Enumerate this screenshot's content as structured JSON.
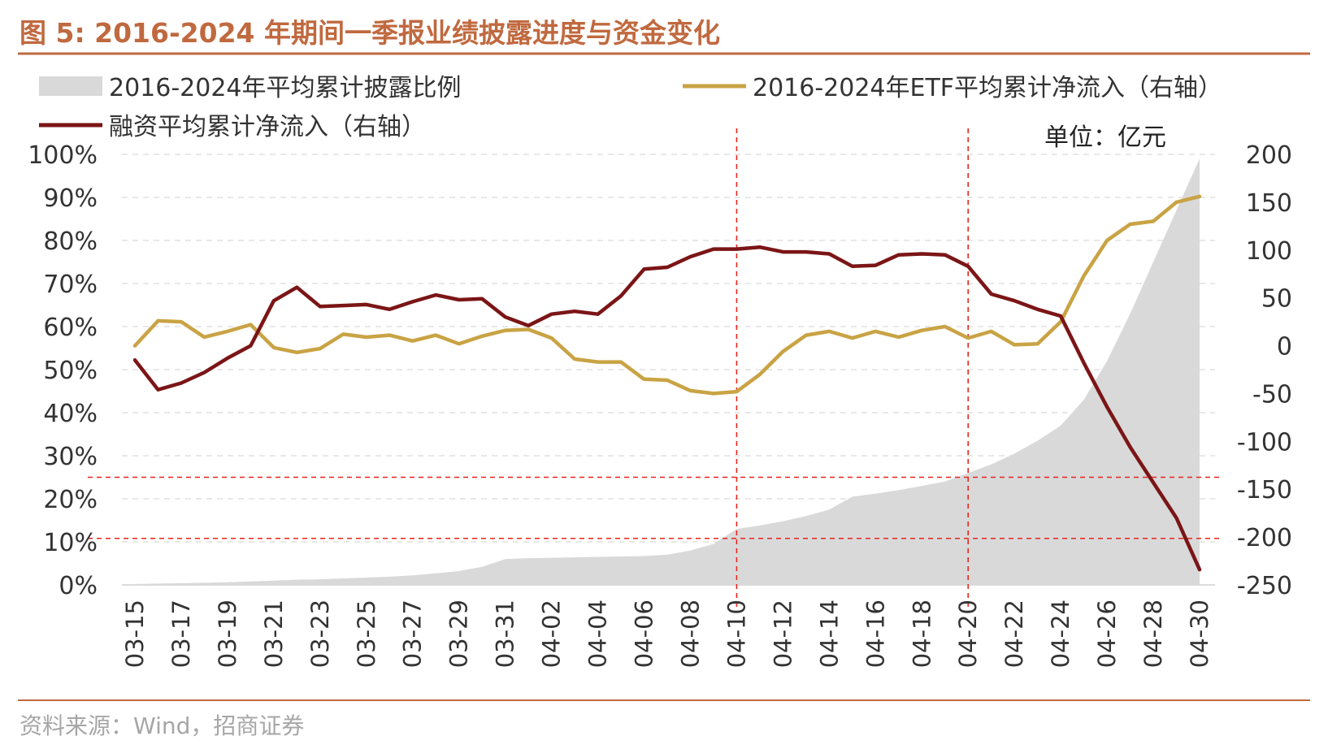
{
  "figure": {
    "title": "图 5:  2016-2024 年期间一季报业绩披露进度与资金变化",
    "source": "资料来源：Wind，招商证券",
    "unit": "单位：亿元",
    "colors": {
      "title": "#c0693f",
      "area": "#d9d9d9",
      "financing": "#7b1516",
      "etf": "#c9a344",
      "refline": "#e8251e",
      "rule": "#c0693f"
    }
  },
  "chart_data": {
    "type": "line",
    "categories": [
      "03-15",
      "03-16",
      "03-17",
      "03-18",
      "03-19",
      "03-20",
      "03-21",
      "03-22",
      "03-23",
      "03-24",
      "03-25",
      "03-26",
      "03-27",
      "03-28",
      "03-29",
      "03-30",
      "03-31",
      "04-01",
      "04-02",
      "04-03",
      "04-04",
      "04-05",
      "04-06",
      "04-07",
      "04-08",
      "04-09",
      "04-10",
      "04-11",
      "04-12",
      "04-13",
      "04-14",
      "04-15",
      "04-16",
      "04-17",
      "04-18",
      "04-19",
      "04-20",
      "04-21",
      "04-22",
      "04-23",
      "04-24",
      "04-25",
      "04-26",
      "04-27",
      "04-28",
      "04-29",
      "04-30"
    ],
    "tick_labels": [
      "03-15",
      "03-17",
      "03-19",
      "03-21",
      "03-23",
      "03-25",
      "03-27",
      "03-29",
      "03-31",
      "04-02",
      "04-04",
      "04-06",
      "04-08",
      "04-10",
      "04-12",
      "04-14",
      "04-16",
      "04-18",
      "04-20",
      "04-22",
      "04-24",
      "04-26",
      "04-28",
      "04-30"
    ],
    "series": [
      {
        "name": "2016-2024年平均累计披露比例",
        "kind": "area",
        "axis": "left",
        "color": "#d9d9d9",
        "values": [
          0.2,
          0.3,
          0.4,
          0.5,
          0.6,
          0.8,
          1.0,
          1.2,
          1.3,
          1.5,
          1.7,
          1.9,
          2.2,
          2.7,
          3.2,
          4.2,
          6.0,
          6.2,
          6.3,
          6.4,
          6.5,
          6.6,
          6.7,
          7.0,
          8.0,
          9.5,
          13.0,
          13.8,
          14.8,
          16.0,
          17.5,
          20.5,
          21.2,
          22.0,
          23.0,
          24.0,
          26.0,
          28.0,
          30.5,
          33.5,
          37.0,
          43.0,
          52.0,
          63.0,
          75.0,
          87.0,
          99.0
        ]
      },
      {
        "name": "2016-2024年ETF平均累计净流入（右轴）",
        "kind": "line",
        "axis": "right",
        "color": "#c9a344",
        "values": [
          0,
          26,
          25,
          9,
          15,
          22,
          -2,
          -7,
          -3,
          12,
          9,
          11,
          5,
          11,
          2,
          10,
          16,
          17,
          8,
          -14,
          -17,
          -17,
          -35,
          -36,
          -47,
          -50,
          -48,
          -30,
          -6,
          11,
          15,
          8,
          15,
          9,
          16,
          20,
          8,
          15,
          1,
          2,
          25,
          73,
          110,
          127,
          130,
          150,
          156
        ]
      },
      {
        "name": "融资平均累计净流入（右轴）",
        "kind": "line",
        "axis": "right",
        "color": "#7b1516",
        "values": [
          -15,
          -46,
          -39,
          -28,
          -13,
          0,
          47,
          61,
          41,
          42,
          43,
          38,
          46,
          53,
          48,
          49,
          30,
          21,
          33,
          36,
          33,
          52,
          80,
          82,
          93,
          101,
          101,
          103,
          98,
          98,
          96,
          83,
          84,
          95,
          96,
          95,
          83,
          54,
          47,
          38,
          31,
          -18,
          -64,
          -106,
          -143,
          -180,
          -234
        ]
      }
    ],
    "y_left": {
      "range": [
        0,
        100
      ],
      "tick_labels": [
        "100%",
        "90%",
        "80%",
        "70%",
        "60%",
        "50%",
        "40%",
        "30%",
        "20%",
        "10%",
        "0%"
      ]
    },
    "y_right": {
      "range": [
        -250,
        200
      ],
      "tick_labels": [
        "200",
        "150",
        "100",
        "50",
        "0",
        "-50",
        "-100",
        "-150",
        "-200",
        "-250"
      ]
    },
    "reference_lines": {
      "vertical": [
        "04-10",
        "04-20"
      ],
      "horizontal_left_pct": [
        25,
        10.8
      ]
    },
    "legend_position": "top",
    "grid": "horizontal dashed"
  }
}
